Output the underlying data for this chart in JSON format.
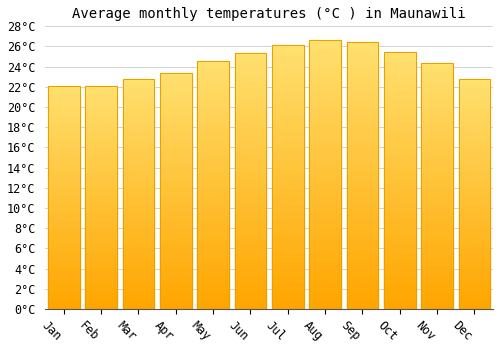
{
  "title": "Average monthly temperatures (°C ) in Maunawili",
  "months": [
    "Jan",
    "Feb",
    "Mar",
    "Apr",
    "May",
    "Jun",
    "Jul",
    "Aug",
    "Sep",
    "Oct",
    "Nov",
    "Dec"
  ],
  "temperatures": [
    22.1,
    22.1,
    22.8,
    23.4,
    24.6,
    25.4,
    26.1,
    26.6,
    26.4,
    25.5,
    24.4,
    22.8
  ],
  "bar_color_top": "#FFDD77",
  "bar_color_bottom": "#FFA500",
  "bar_edge_color": "#E8A000",
  "ylim": [
    0,
    28
  ],
  "ytick_step": 2,
  "background_color": "#ffffff",
  "grid_color": "#cccccc",
  "title_fontsize": 10,
  "tick_fontsize": 8.5,
  "bar_width": 0.85
}
